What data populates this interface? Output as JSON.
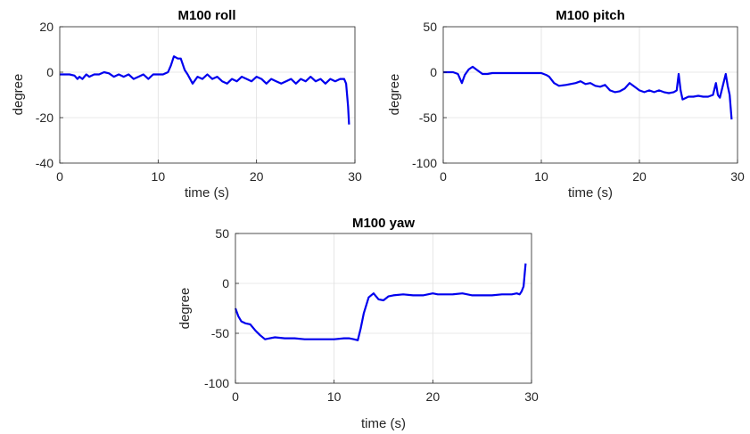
{
  "chart_data": [
    {
      "type": "line",
      "title": "M100 roll",
      "xlabel": "time (s)",
      "ylabel": "degree",
      "xlim": [
        0,
        30
      ],
      "ylim": [
        -40,
        20
      ],
      "xticks": [
        "0",
        "10",
        "20",
        "30"
      ],
      "yticks": [
        "20",
        "0",
        "-20",
        "-40"
      ],
      "grid": true,
      "series_color": "#0000ee",
      "x": [
        0,
        0.5,
        1.0,
        1.5,
        1.8,
        2.0,
        2.3,
        2.7,
        3.0,
        3.5,
        4.0,
        4.5,
        5.0,
        5.5,
        6.0,
        6.5,
        7.0,
        7.5,
        8.0,
        8.5,
        9.0,
        9.5,
        10.0,
        10.5,
        11.0,
        11.3,
        11.6,
        12.0,
        12.3,
        12.7,
        13.0,
        13.5,
        14.0,
        14.5,
        15.0,
        15.5,
        16.0,
        16.5,
        17.0,
        17.5,
        18.0,
        18.5,
        19.0,
        19.5,
        20.0,
        20.5,
        21.0,
        21.5,
        22.0,
        22.5,
        23.0,
        23.5,
        24.0,
        24.5,
        25.0,
        25.5,
        26.0,
        26.5,
        27.0,
        27.5,
        28.0,
        28.5,
        28.9,
        29.1,
        29.3,
        29.4
      ],
      "values": [
        -1,
        -1,
        -1,
        -1.5,
        -3,
        -2,
        -3,
        -1,
        -2,
        -1,
        -1,
        0,
        -0.5,
        -2,
        -1,
        -2,
        -1,
        -3,
        -2,
        -1,
        -3,
        -1,
        -1,
        -1,
        0,
        3,
        7,
        6,
        6,
        1,
        -1,
        -5,
        -2,
        -3,
        -1,
        -3,
        -2,
        -4,
        -5,
        -3,
        -4,
        -2,
        -3,
        -4,
        -2,
        -3,
        -5,
        -3,
        -4,
        -5,
        -4,
        -3,
        -5,
        -3,
        -4,
        -2,
        -4,
        -3,
        -5,
        -3,
        -4,
        -3,
        -3,
        -5,
        -15,
        -23
      ]
    },
    {
      "type": "line",
      "title": "M100 pitch",
      "xlabel": "time (s)",
      "ylabel": "degree",
      "xlim": [
        0,
        30
      ],
      "ylim": [
        -100,
        50
      ],
      "xticks": [
        "0",
        "10",
        "20",
        "30"
      ],
      "yticks": [
        "50",
        "0",
        "-50",
        "-100"
      ],
      "grid": true,
      "series_color": "#0000ee",
      "x": [
        0,
        1.0,
        1.5,
        1.9,
        2.2,
        2.6,
        3.0,
        3.5,
        4.0,
        4.5,
        5.0,
        6.0,
        7.0,
        8.0,
        9.0,
        10.0,
        10.5,
        10.8,
        11.3,
        11.8,
        12.5,
        13.5,
        14.0,
        14.5,
        15.0,
        15.5,
        16.0,
        16.5,
        17.0,
        17.5,
        18.0,
        18.5,
        19.0,
        19.5,
        20.0,
        20.5,
        21.0,
        21.5,
        22.0,
        22.5,
        23.0,
        23.5,
        23.8,
        24.0,
        24.2,
        24.4,
        25.0,
        25.5,
        26.0,
        26.5,
        27.0,
        27.5,
        27.8,
        28.0,
        28.2,
        28.5,
        28.8,
        29.0,
        29.2,
        29.4
      ],
      "values": [
        0,
        0,
        -2,
        -12,
        -3,
        3,
        6,
        2,
        -2,
        -2,
        -1,
        -1,
        -1,
        -1,
        -1,
        -1,
        -3,
        -5,
        -12,
        -15,
        -14,
        -12,
        -10,
        -13,
        -12,
        -15,
        -16,
        -14,
        -20,
        -22,
        -21,
        -18,
        -12,
        -16,
        -20,
        -22,
        -20,
        -22,
        -20,
        -22,
        -23,
        -22,
        -20,
        -2,
        -20,
        -30,
        -27,
        -27,
        -26,
        -27,
        -27,
        -25,
        -12,
        -25,
        -28,
        -15,
        -2,
        -15,
        -25,
        -52
      ]
    },
    {
      "type": "line",
      "title": "M100 yaw",
      "xlabel": "time (s)",
      "ylabel": "degree",
      "xlim": [
        0,
        30
      ],
      "ylim": [
        -100,
        50
      ],
      "xticks": [
        "0",
        "10",
        "20",
        "30"
      ],
      "yticks": [
        "50",
        "0",
        "-50",
        "-100"
      ],
      "grid": true,
      "series_color": "#0000ee",
      "x": [
        0,
        0.3,
        0.6,
        1.0,
        1.5,
        2.0,
        2.5,
        3.0,
        3.5,
        4.0,
        5.0,
        6.0,
        7.0,
        8.0,
        9.0,
        10.0,
        11.0,
        11.5,
        12.0,
        12.4,
        12.7,
        13.0,
        13.5,
        14.0,
        14.5,
        15.0,
        15.5,
        16.0,
        17.0,
        18.0,
        19.0,
        20.0,
        20.5,
        21.0,
        22.0,
        23.0,
        24.0,
        25.0,
        26.0,
        27.0,
        28.0,
        28.5,
        28.8,
        29.0,
        29.2,
        29.4
      ],
      "values": [
        -25,
        -33,
        -38,
        -40,
        -41,
        -47,
        -52,
        -56,
        -55,
        -54,
        -55,
        -55,
        -56,
        -56,
        -56,
        -56,
        -55,
        -55,
        -56,
        -57,
        -45,
        -30,
        -14,
        -10,
        -16,
        -17,
        -13,
        -12,
        -11,
        -12,
        -12,
        -10,
        -11,
        -11,
        -11,
        -10,
        -12,
        -12,
        -12,
        -11,
        -11,
        -10,
        -11,
        -8,
        -3,
        20
      ]
    }
  ]
}
